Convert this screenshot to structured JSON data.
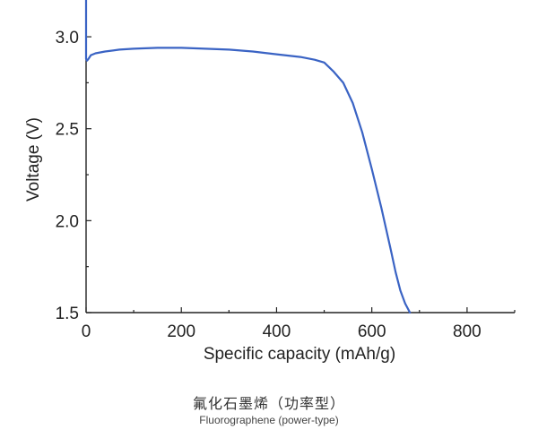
{
  "chart_data": {
    "type": "line",
    "xlabel": "Specific capacity (mAh/g)",
    "ylabel": "Voltage (V)",
    "xlim": [
      0,
      900
    ],
    "ylim": [
      1.5,
      3.2
    ],
    "xticks": [
      0,
      200,
      400,
      600,
      800
    ],
    "yticks": [
      1.5,
      2.0,
      2.5,
      3.0
    ],
    "xtick_labels": [
      "0",
      "200",
      "400",
      "600",
      "800"
    ],
    "ytick_labels": [
      "1.5",
      "2.0",
      "2.5",
      "3.0"
    ],
    "grid": false,
    "line_color": "#3a63c4",
    "series": [
      {
        "x": [
          0,
          0,
          2,
          5,
          10,
          20,
          40,
          70,
          100,
          150,
          200,
          250,
          300,
          350,
          400,
          450,
          480,
          500,
          520,
          540,
          560,
          580,
          600,
          620,
          640,
          650,
          660,
          670,
          680
        ],
        "y": [
          3.2,
          2.88,
          2.87,
          2.88,
          2.9,
          2.91,
          2.92,
          2.93,
          2.935,
          2.94,
          2.94,
          2.935,
          2.93,
          2.92,
          2.905,
          2.89,
          2.875,
          2.86,
          2.81,
          2.75,
          2.64,
          2.48,
          2.28,
          2.07,
          1.84,
          1.72,
          1.62,
          1.55,
          1.5
        ]
      }
    ]
  },
  "caption": {
    "cn": "氟化石墨烯（功率型）",
    "en": "Fluorographene (power-type)"
  }
}
